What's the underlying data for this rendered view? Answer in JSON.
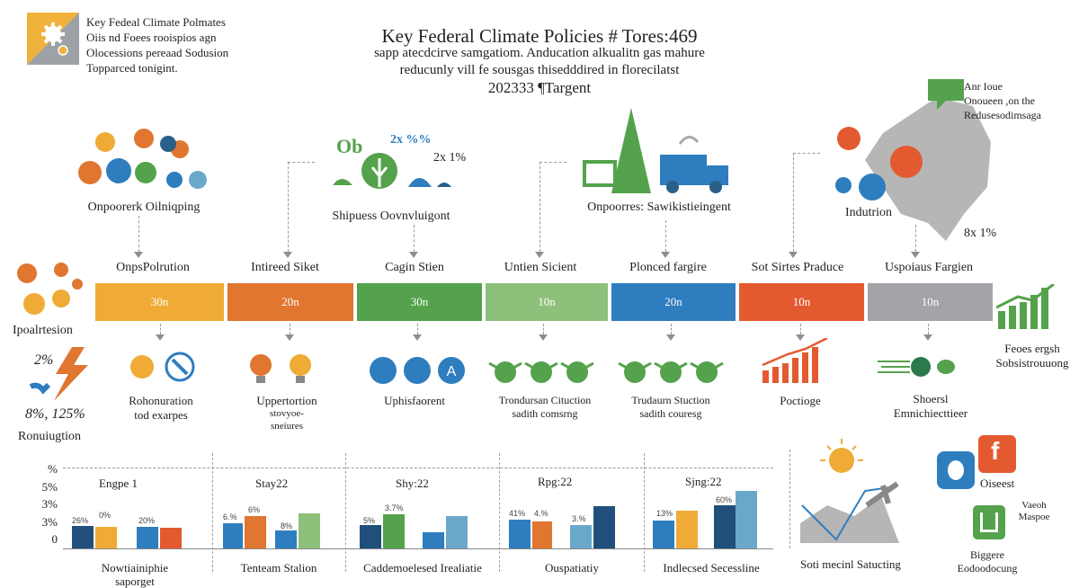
{
  "header": {
    "logo_text": [
      "Key Fedeal Climate Polmates",
      "Oiis nd Foees rooispios agn",
      "Olocessions pereaad Sodusion",
      "Topparced tonigint."
    ],
    "title": "Key Federal Climate Policies # Tores:469",
    "subtitle": [
      "sapp atecdcirve samgatiom. Anducation alkualitn gas mahure",
      "reducunly vill fe sousgas thisedddired in florecilatst",
      "202333 ¶Targent"
    ]
  },
  "top_clusters": [
    {
      "label": "Onpoorerk Oilniqping"
    },
    {
      "label": "Shipuess Oovnvluigont",
      "tag_a": "Ob",
      "tag_b": "2x %%",
      "tag_c": "2x 1%"
    },
    {
      "label": "Onpoorres: Sawikistieingent"
    },
    {
      "label": "Indutrion",
      "side_value": "8x 1%"
    }
  ],
  "map_label": [
    "Anr Ioue",
    "Onoueen ,on the",
    "Redusesodimsaga"
  ],
  "left_side": {
    "label_top": "Ipoalrtesion",
    "val1": "2%",
    "val2": "8%, 125%",
    "label_bottom": "Ronuiugtion"
  },
  "right_side": {
    "label": [
      "Feoes ergsh",
      "Sobsistrouuong"
    ]
  },
  "segments": [
    {
      "label": "OnpsPolrution",
      "value": "30n",
      "color": "#efab36"
    },
    {
      "label": "Intireed Siket",
      "value": "20n",
      "color": "#e0762f"
    },
    {
      "label": "Cagin Stien",
      "value": "30n",
      "color": "#54a24b"
    },
    {
      "label": "Untien Sicient",
      "value": "10n",
      "color": "#8dc07b"
    },
    {
      "label": "Plonced fargire",
      "value": "20n",
      "color": "#2e7dbf"
    },
    {
      "label": "Sot Sirtes Praduce",
      "value": "10n",
      "color": "#e45a30"
    },
    {
      "label": "Uspoiaus Fargien",
      "value": "10n",
      "color": "#a2a4a7"
    }
  ],
  "mid_labels": [
    [
      "Rohonuration",
      "tod exarpes"
    ],
    [
      "Uppertortion",
      "stovyoe-",
      "sneiures"
    ],
    [
      "Uphisfaorent"
    ],
    [
      "Trondursan Cituction",
      "sadith comsrng"
    ],
    [
      "Trudaurn Stuction",
      "sadith couresg"
    ],
    [
      "Poctioge"
    ],
    [
      "Shoersl",
      "Emnichiecttieer"
    ]
  ],
  "bottom_axis": {
    "ticks": [
      "%",
      "5%",
      "3%",
      "3%",
      "0"
    ]
  },
  "bottom_panels": [
    {
      "title": "Engpe 1",
      "caption": [
        "Nowtiainiphie",
        "saporget"
      ],
      "values": [
        "26%",
        "0%",
        "20%"
      ]
    },
    {
      "title": "Stay22",
      "caption": [
        "Tenteam Stalion"
      ],
      "values": [
        "6.%",
        "6%",
        "8%"
      ]
    },
    {
      "title": "Shy:22",
      "caption": [
        "Caddemoelesed Irealiatie"
      ],
      "values": [
        "5%",
        "3.7%"
      ]
    },
    {
      "title": "Rpg:22",
      "caption": [
        "Ouspatiatiy"
      ],
      "values": [
        "41%",
        "4.%",
        "3.%"
      ]
    },
    {
      "title": "Sjng:22",
      "caption": [
        "Indlecsed Secessline"
      ],
      "values": [
        "13%",
        "60%"
      ]
    }
  ],
  "bottom_right": {
    "caption1": "Soti mecinl Satucting",
    "caption2": "Oiseest",
    "caption3": [
      "Vaeoh",
      "Maspoe"
    ],
    "caption4": [
      "Biggere",
      "Eodoodocung"
    ]
  }
}
